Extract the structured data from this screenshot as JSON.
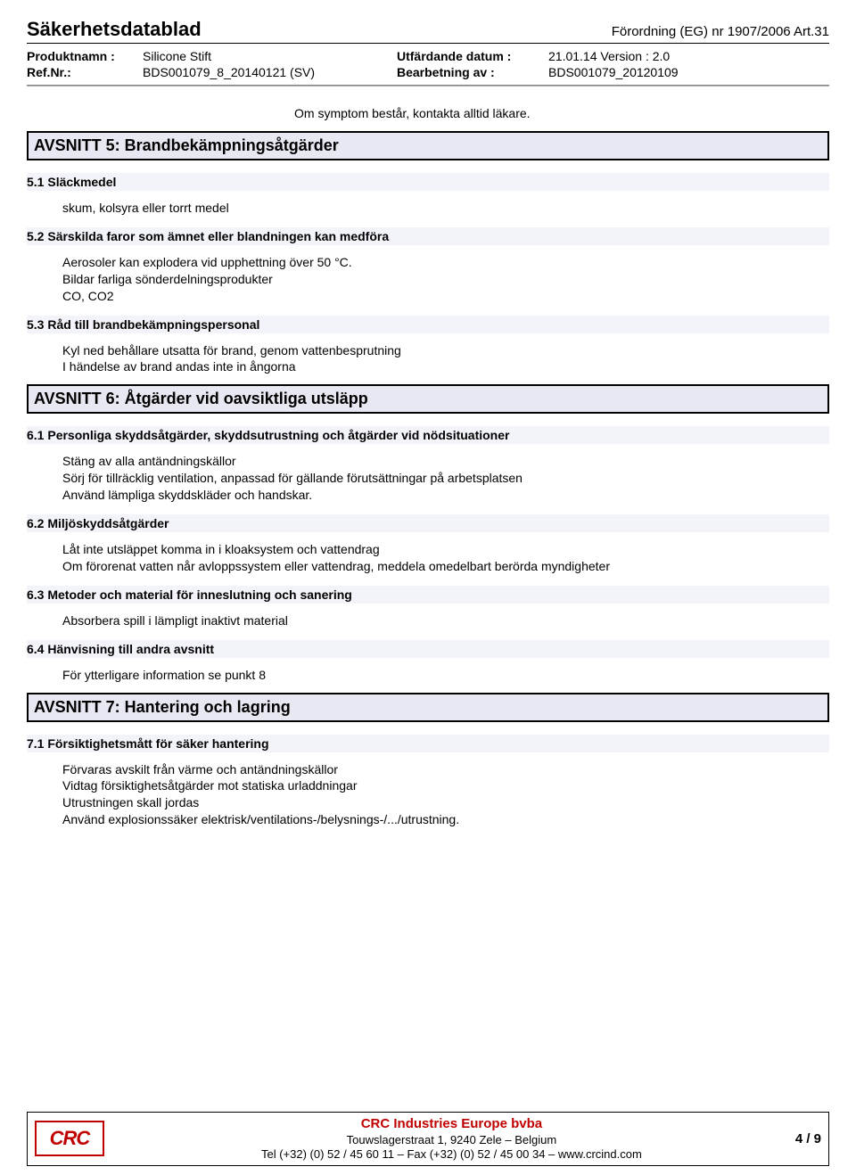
{
  "header": {
    "title": "Säkerhetsdatablad",
    "regulation": "Förordning (EG) nr 1907/2006 Art.31"
  },
  "meta": {
    "product_label": "Produktnamn :",
    "product_value": "Silicone Stift",
    "ref_label": "Ref.Nr.:",
    "ref_value": "BDS001079_8_20140121 (SV)",
    "date_label": "Utfärdande datum :",
    "date_value": "21.01.14 Version : 2.0",
    "rev_label": "Bearbetning av :",
    "rev_value": "BDS001079_20120109"
  },
  "top_note": "Om symptom består, kontakta alltid läkare.",
  "section5": {
    "title": "AVSNITT 5: Brandbekämpningsåtgärder",
    "s1_head": "5.1 Släckmedel",
    "s1_body": "skum, kolsyra eller torrt medel",
    "s2_head": "5.2 Särskilda faror som ämnet eller blandningen kan medföra",
    "s2_l1": "Aerosoler kan explodera vid upphettning över 50 °C.",
    "s2_l2": "Bildar farliga sönderdelningsprodukter",
    "s2_l3": "CO, CO2",
    "s3_head": "5.3 Råd till brandbekämpningspersonal",
    "s3_l1": "Kyl ned behållare utsatta för brand, genom vattenbesprutning",
    "s3_l2": "I händelse av brand andas inte in ångorna"
  },
  "section6": {
    "title": "AVSNITT 6: Åtgärder vid oavsiktliga utsläpp",
    "s1_head": "6.1 Personliga skyddsåtgärder, skyddsutrustning och åtgärder vid nödsituationer",
    "s1_l1": "Stäng av alla antändningskällor",
    "s1_l2": "Sörj för tillräcklig ventilation, anpassad för gällande förutsättningar på arbetsplatsen",
    "s1_l3": "Använd lämpliga skyddskläder och handskar.",
    "s2_head": "6.2 Miljöskyddsåtgärder",
    "s2_l1": "Låt inte utsläppet komma in i kloaksystem och vattendrag",
    "s2_l2": "Om förorenat vatten når avloppssystem eller vattendrag, meddela omedelbart berörda myndigheter",
    "s3_head": "6.3 Metoder och material för inneslutning och sanering",
    "s3_l1": "Absorbera spill i lämpligt inaktivt material",
    "s4_head": "6.4 Hänvisning till andra avsnitt",
    "s4_l1": "För ytterligare information se punkt 8"
  },
  "section7": {
    "title": "AVSNITT 7: Hantering och lagring",
    "s1_head": "7.1 Försiktighetsmått för säker hantering",
    "s1_l1": "Förvaras avskilt från värme och antändningskällor",
    "s1_l2": "Vidtag försiktighetsåtgärder mot statiska urladdningar",
    "s1_l3": "Utrustningen skall jordas",
    "s1_l4": "Använd explosionssäker elektrisk/ventilations-/belysnings-/.../utrustning."
  },
  "footer": {
    "logo": "CRC",
    "company": "CRC Industries Europe bvba",
    "address": "Touwslagerstraat 1,  9240 Zele – Belgium",
    "contact": "Tel (+32) (0) 52 / 45 60 11 – Fax (+32) (0) 52 / 45 00 34 – www.crcind.com",
    "page": "4 / 9"
  }
}
